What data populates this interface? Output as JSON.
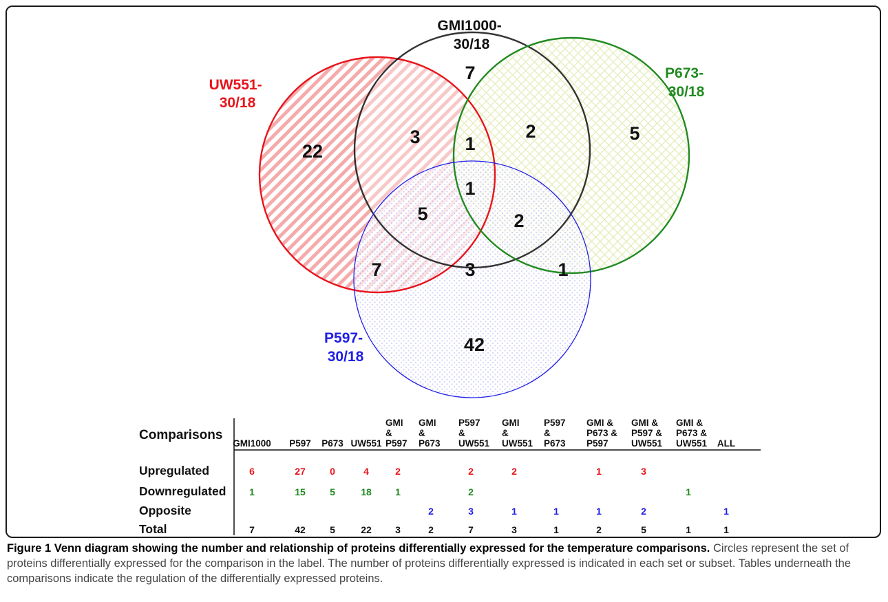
{
  "venn": {
    "sets": [
      {
        "label_lines": [
          "UW551-",
          "30/18"
        ],
        "color": "#e8141b"
      },
      {
        "label_lines": [
          "GMI1000-",
          "30/18"
        ],
        "color": "#111111"
      },
      {
        "label_lines": [
          "P673-",
          "30/18"
        ],
        "color": "#218a21"
      },
      {
        "label_lines": [
          "P597-",
          "30/18"
        ],
        "color": "#1f1fe6"
      }
    ],
    "regions": [
      {
        "sets": [
          "UW551"
        ],
        "value": "22"
      },
      {
        "sets": [
          "GMI1000"
        ],
        "value": "7"
      },
      {
        "sets": [
          "P673"
        ],
        "value": "5"
      },
      {
        "sets": [
          "P597"
        ],
        "value": "42"
      },
      {
        "sets": [
          "UW551",
          "GMI1000"
        ],
        "value": "3"
      },
      {
        "sets": [
          "UW551",
          "GMI1000",
          "P673"
        ],
        "value": "1"
      },
      {
        "sets": [
          "GMI1000",
          "P673"
        ],
        "value": "2"
      },
      {
        "sets": [
          "UW551",
          "GMI1000",
          "P673",
          "P597"
        ],
        "value": "1"
      },
      {
        "sets": [
          "UW551",
          "GMI1000",
          "P597"
        ],
        "value": "5"
      },
      {
        "sets": [
          "GMI1000",
          "P673",
          "P597"
        ],
        "value": "2"
      },
      {
        "sets": [
          "UW551",
          "P597"
        ],
        "value": "7"
      },
      {
        "sets": [
          "GMI1000",
          "P597"
        ],
        "value": "3"
      },
      {
        "sets": [
          "P673",
          "P597"
        ],
        "value": "1"
      }
    ]
  },
  "table": {
    "corner": "Comparisons",
    "columns": [
      [
        "GMI1000"
      ],
      [
        "P597"
      ],
      [
        "P673"
      ],
      [
        "UW551"
      ],
      [
        "GMI",
        "&",
        "P597"
      ],
      [
        "GMI",
        "&",
        "P673"
      ],
      [
        "P597",
        "&",
        "UW551"
      ],
      [
        "GMI",
        "&",
        "UW551"
      ],
      [
        "P597",
        "&",
        "P673"
      ],
      [
        "GMI &",
        "P673 &",
        "P597"
      ],
      [
        "GMI &",
        "P597 &",
        "UW551"
      ],
      [
        "GMI &",
        "P673 &",
        "UW551"
      ],
      [
        "ALL"
      ]
    ],
    "rows": [
      {
        "label": "Upregulated",
        "color": "#e8141b",
        "values": [
          "6",
          "27",
          "0",
          "4",
          "2",
          "",
          "2",
          "2",
          "",
          "1",
          "3",
          "",
          ""
        ]
      },
      {
        "label": "Downregulated",
        "color": "#218a21",
        "values": [
          "1",
          "15",
          "5",
          "18",
          "1",
          "",
          "2",
          "",
          "",
          "",
          "",
          "1",
          ""
        ]
      },
      {
        "label": "Opposite",
        "color": "#1f1fe6",
        "values": [
          "",
          "",
          "",
          "",
          "",
          "2",
          "3",
          "1",
          "1",
          "1",
          "2",
          "",
          "1"
        ]
      },
      {
        "label": "Total",
        "color": "#111111",
        "values": [
          "7",
          "42",
          "5",
          "22",
          "3",
          "2",
          "7",
          "3",
          "1",
          "2",
          "5",
          "1",
          "1"
        ]
      }
    ]
  },
  "caption": {
    "title": "Figure 1 Venn diagram showing the number and relationship of proteins differentially expressed for the temperature comparisons.",
    "body": "Circles represent the set of proteins differentially expressed for the comparison in the label. The number of proteins differentially expressed is indicated in each set or subset. Tables underneath the comparisons indicate the regulation of the differentially expressed proteins."
  }
}
